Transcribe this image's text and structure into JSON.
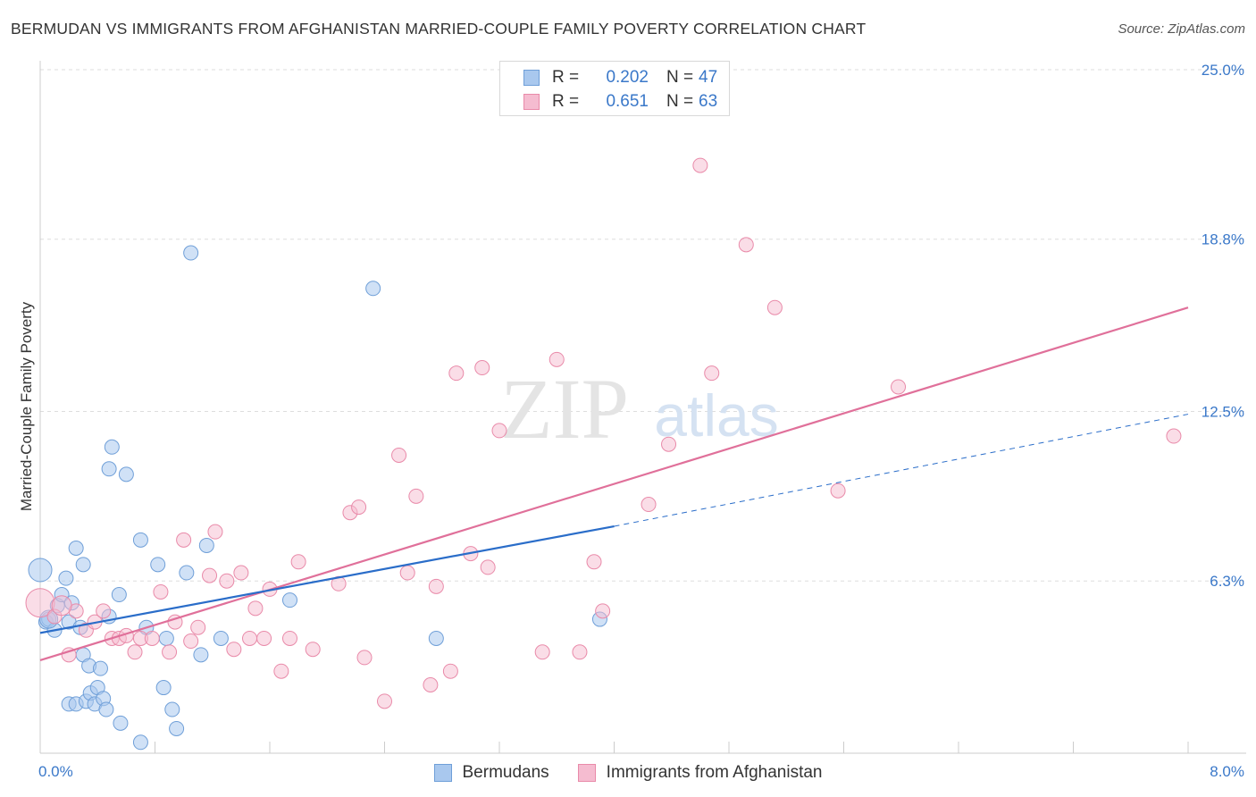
{
  "title": "BERMUDAN VS IMMIGRANTS FROM AFGHANISTAN MARRIED-COUPLE FAMILY POVERTY CORRELATION CHART",
  "source": "Source: ZipAtlas.com",
  "watermark": {
    "zip": "ZIP",
    "atlas": "atlas"
  },
  "legend": {
    "series1": {
      "r_label": "R =",
      "r_value": "0.202",
      "n_label": "N =",
      "n_value": "47"
    },
    "series2": {
      "r_label": "R =",
      "r_value": "0.651",
      "n_label": "N =",
      "n_value": "63"
    }
  },
  "colors": {
    "blue_fill": "#a9c8ee",
    "blue_stroke": "#6f9fd8",
    "blue_line": "#2a6dc9",
    "pink_fill": "#f5bcd0",
    "pink_stroke": "#e98aa9",
    "pink_line": "#e0709a",
    "grid": "#dddddd",
    "tick_label": "#3a78c9"
  },
  "chart_data": {
    "type": "scatter",
    "title": "BERMUDAN VS IMMIGRANTS FROM AFGHANISTAN MARRIED-COUPLE FAMILY POVERTY CORRELATION CHART",
    "xlabel": "",
    "ylabel": "Married-Couple Family Poverty",
    "xlim": [
      0,
      8.0
    ],
    "ylim": [
      0,
      25.0
    ],
    "x_tick_labels": [
      "0.0%",
      "8.0%"
    ],
    "y_ticks": [
      6.3,
      12.5,
      18.8,
      25.0
    ],
    "y_tick_labels": [
      "6.3%",
      "12.5%",
      "18.8%",
      "25.0%"
    ],
    "grid": true,
    "legend_position": "top-center",
    "series": [
      {
        "name": "Bermudans",
        "r": 0.202,
        "n": 47,
        "trend": {
          "x0": 0.0,
          "y0": 4.4,
          "x1": 4.0,
          "y1": 8.3,
          "dashed_to_x": 8.0,
          "dashed_to_y": 12.4
        },
        "points": [
          [
            0.0,
            6.7
          ],
          [
            0.04,
            4.8
          ],
          [
            0.06,
            4.9
          ],
          [
            0.1,
            4.5
          ],
          [
            0.12,
            5.4
          ],
          [
            0.15,
            5.8
          ],
          [
            0.18,
            6.4
          ],
          [
            0.2,
            4.8
          ],
          [
            0.22,
            5.5
          ],
          [
            0.25,
            7.5
          ],
          [
            0.28,
            4.6
          ],
          [
            0.3,
            3.6
          ],
          [
            0.3,
            6.9
          ],
          [
            0.34,
            3.2
          ],
          [
            0.2,
            1.8
          ],
          [
            0.25,
            1.8
          ],
          [
            0.32,
            1.9
          ],
          [
            0.35,
            2.2
          ],
          [
            0.38,
            1.8
          ],
          [
            0.4,
            2.4
          ],
          [
            0.42,
            3.1
          ],
          [
            0.44,
            2.0
          ],
          [
            0.46,
            1.6
          ],
          [
            0.48,
            5.0
          ],
          [
            0.5,
            11.2
          ],
          [
            0.55,
            5.8
          ],
          [
            0.48,
            10.4
          ],
          [
            0.6,
            10.2
          ],
          [
            0.56,
            1.1
          ],
          [
            0.7,
            0.4
          ],
          [
            0.7,
            7.8
          ],
          [
            0.74,
            4.6
          ],
          [
            0.82,
            6.9
          ],
          [
            0.86,
            2.4
          ],
          [
            0.88,
            4.2
          ],
          [
            0.92,
            1.6
          ],
          [
            0.95,
            0.9
          ],
          [
            1.02,
            6.6
          ],
          [
            1.05,
            18.3
          ],
          [
            1.12,
            3.6
          ],
          [
            1.16,
            7.6
          ],
          [
            1.26,
            4.2
          ],
          [
            1.74,
            5.6
          ],
          [
            2.32,
            17.0
          ],
          [
            2.76,
            4.2
          ],
          [
            3.9,
            4.9
          ],
          [
            0.06,
            4.9
          ]
        ]
      },
      {
        "name": "Immigrants from Afghanistan",
        "r": 0.651,
        "n": 63,
        "trend": {
          "x0": 0.0,
          "y0": 3.4,
          "x1": 8.0,
          "y1": 16.3
        },
        "points": [
          [
            0.0,
            5.5
          ],
          [
            0.1,
            5.0
          ],
          [
            0.2,
            3.6
          ],
          [
            0.25,
            5.2
          ],
          [
            0.32,
            4.5
          ],
          [
            0.38,
            4.8
          ],
          [
            0.44,
            5.2
          ],
          [
            0.5,
            4.2
          ],
          [
            0.55,
            4.2
          ],
          [
            0.6,
            4.3
          ],
          [
            0.66,
            3.7
          ],
          [
            0.7,
            4.2
          ],
          [
            0.78,
            4.2
          ],
          [
            0.84,
            5.9
          ],
          [
            0.9,
            3.7
          ],
          [
            0.94,
            4.8
          ],
          [
            1.0,
            7.8
          ],
          [
            1.05,
            4.1
          ],
          [
            1.1,
            4.6
          ],
          [
            1.18,
            6.5
          ],
          [
            1.22,
            8.1
          ],
          [
            1.3,
            6.3
          ],
          [
            1.35,
            3.8
          ],
          [
            1.4,
            6.6
          ],
          [
            1.46,
            4.2
          ],
          [
            1.5,
            5.3
          ],
          [
            1.56,
            4.2
          ],
          [
            1.6,
            6.0
          ],
          [
            1.68,
            3.0
          ],
          [
            1.74,
            4.2
          ],
          [
            1.8,
            7.0
          ],
          [
            1.9,
            3.8
          ],
          [
            2.08,
            6.2
          ],
          [
            2.16,
            8.8
          ],
          [
            2.22,
            9.0
          ],
          [
            2.26,
            3.5
          ],
          [
            2.4,
            1.9
          ],
          [
            2.5,
            10.9
          ],
          [
            2.56,
            6.6
          ],
          [
            2.62,
            9.4
          ],
          [
            2.72,
            2.5
          ],
          [
            2.76,
            6.1
          ],
          [
            2.86,
            3.0
          ],
          [
            2.9,
            13.9
          ],
          [
            3.0,
            7.3
          ],
          [
            3.08,
            14.1
          ],
          [
            3.12,
            6.8
          ],
          [
            3.2,
            11.8
          ],
          [
            3.5,
            3.7
          ],
          [
            3.6,
            14.4
          ],
          [
            3.76,
            3.7
          ],
          [
            3.86,
            7.0
          ],
          [
            3.92,
            5.2
          ],
          [
            4.24,
            9.1
          ],
          [
            4.38,
            11.3
          ],
          [
            4.6,
            21.5
          ],
          [
            4.68,
            13.9
          ],
          [
            4.92,
            18.6
          ],
          [
            5.12,
            16.3
          ],
          [
            5.56,
            9.6
          ],
          [
            5.98,
            13.4
          ],
          [
            7.9,
            11.6
          ],
          [
            0.15,
            5.4
          ]
        ]
      }
    ]
  }
}
